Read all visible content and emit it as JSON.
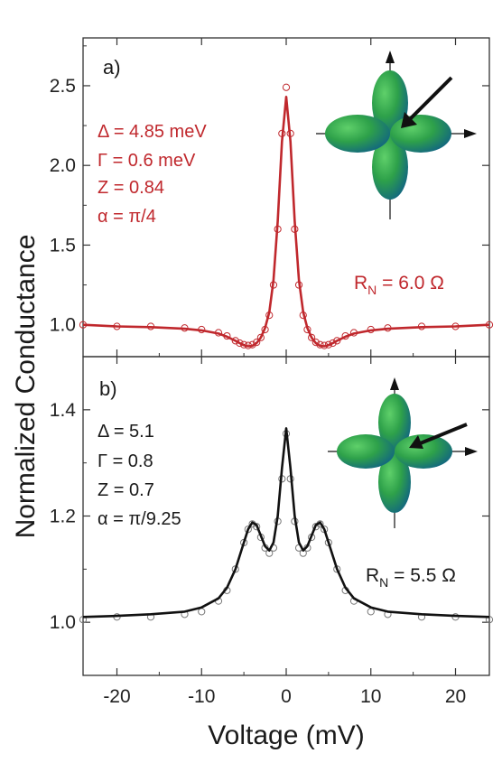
{
  "colors": {
    "top_series": "#c0282d",
    "bottom_fit": "#111111",
    "bottom_data": "#777777",
    "lobe_light": "#38b24a",
    "lobe_dark": "#0c5a8c"
  },
  "chart_data": [
    {
      "type": "line",
      "panel_label": "a)",
      "xlabel": "Voltage (mV)",
      "ylabel": "Normalized Conductance",
      "xlim": [
        -24,
        24
      ],
      "ylim": [
        0.8,
        2.8
      ],
      "yticks": [
        "1.0",
        "1.5",
        "2.0",
        "2.5"
      ],
      "params": [
        "Δ = 4.85 meV",
        "Γ = 0.6 meV",
        "Z = 0.84",
        "α = π/4"
      ],
      "rn": {
        "prefix": "R",
        "sub": "N",
        "value": " = 6.0 Ω"
      },
      "inset": {
        "type": "d-wave order parameter lobes",
        "arrow_angle_deg": 45
      },
      "series": [
        {
          "kind": "data",
          "marker": "open circle",
          "x": [
            -24,
            -20,
            -16,
            -12,
            -10,
            -8,
            -7,
            -6,
            -5.5,
            -5,
            -4.5,
            -4,
            -3.5,
            -3,
            -2.5,
            -2,
            -1.5,
            -1,
            -0.5,
            0,
            0.5,
            1,
            1.5,
            2,
            2.5,
            3,
            3.5,
            4,
            4.5,
            5,
            5.5,
            6,
            7,
            8,
            10,
            12,
            16,
            20,
            24
          ],
          "y": [
            1.0,
            0.99,
            0.99,
            0.98,
            0.97,
            0.95,
            0.93,
            0.9,
            0.885,
            0.875,
            0.87,
            0.875,
            0.89,
            0.92,
            0.97,
            1.06,
            1.25,
            1.6,
            2.2,
            2.49,
            2.2,
            1.6,
            1.25,
            1.06,
            0.97,
            0.92,
            0.89,
            0.875,
            0.87,
            0.875,
            0.885,
            0.9,
            0.93,
            0.95,
            0.97,
            0.98,
            0.99,
            0.99,
            1.0
          ]
        },
        {
          "kind": "fit",
          "x": [
            -24,
            -20,
            -16,
            -12,
            -10,
            -8,
            -7,
            -6,
            -5.5,
            -5,
            -4.5,
            -4,
            -3.5,
            -3,
            -2.5,
            -2,
            -1.5,
            -1,
            -0.5,
            0,
            0.5,
            1,
            1.5,
            2,
            2.5,
            3,
            3.5,
            4,
            4.5,
            5,
            5.5,
            6,
            7,
            8,
            10,
            12,
            16,
            20,
            24
          ],
          "y": [
            1.0,
            0.99,
            0.985,
            0.975,
            0.965,
            0.945,
            0.925,
            0.9,
            0.885,
            0.872,
            0.865,
            0.868,
            0.885,
            0.92,
            0.98,
            1.08,
            1.28,
            1.65,
            2.15,
            2.43,
            2.15,
            1.65,
            1.28,
            1.08,
            0.98,
            0.92,
            0.885,
            0.868,
            0.865,
            0.872,
            0.885,
            0.9,
            0.925,
            0.945,
            0.965,
            0.975,
            0.985,
            0.99,
            1.0
          ]
        }
      ]
    },
    {
      "type": "line",
      "panel_label": "b)",
      "xlabel": "Voltage (mV)",
      "ylabel": "Normalized Conductance",
      "xlim": [
        -24,
        24
      ],
      "ylim": [
        0.9,
        1.5
      ],
      "xticks": [
        "-20",
        "-10",
        "0",
        "10",
        "20"
      ],
      "yticks": [
        "1.0",
        "1.2",
        "1.4"
      ],
      "params": [
        "Δ = 5.1",
        "Γ = 0.8",
        "Z = 0.7",
        "α = π/9.25"
      ],
      "rn": {
        "prefix": "R",
        "sub": "N",
        "value": " = 5.5 Ω"
      },
      "inset": {
        "type": "d-wave order parameter lobes",
        "arrow_angle_deg": 20
      },
      "series": [
        {
          "kind": "data",
          "marker": "open circle",
          "x": [
            -24,
            -20,
            -16,
            -12,
            -10,
            -8,
            -7,
            -6,
            -5,
            -4.5,
            -4,
            -3.5,
            -3,
            -2.5,
            -2,
            -1.5,
            -1,
            -0.5,
            0,
            0.5,
            1,
            1.5,
            2,
            2.5,
            3,
            3.5,
            4,
            4.5,
            5,
            6,
            7,
            8,
            10,
            12,
            16,
            20,
            24
          ],
          "y": [
            1.005,
            1.01,
            1.01,
            1.015,
            1.02,
            1.04,
            1.06,
            1.1,
            1.15,
            1.175,
            1.185,
            1.18,
            1.16,
            1.14,
            1.13,
            1.14,
            1.19,
            1.27,
            1.355,
            1.27,
            1.19,
            1.14,
            1.13,
            1.14,
            1.16,
            1.18,
            1.185,
            1.175,
            1.15,
            1.1,
            1.06,
            1.04,
            1.02,
            1.015,
            1.01,
            1.01,
            1.005
          ]
        },
        {
          "kind": "fit",
          "x": [
            -24,
            -20,
            -16,
            -12,
            -10,
            -8,
            -7,
            -6,
            -5,
            -4.5,
            -4,
            -3.5,
            -3,
            -2.5,
            -2,
            -1.5,
            -1,
            -0.5,
            0,
            0.5,
            1,
            1.5,
            2,
            2.5,
            3,
            3.5,
            4,
            4.5,
            5,
            6,
            7,
            8,
            10,
            12,
            16,
            20,
            24
          ],
          "y": [
            1.01,
            1.012,
            1.015,
            1.02,
            1.028,
            1.045,
            1.065,
            1.1,
            1.15,
            1.175,
            1.188,
            1.183,
            1.163,
            1.143,
            1.135,
            1.15,
            1.2,
            1.29,
            1.365,
            1.29,
            1.2,
            1.15,
            1.135,
            1.143,
            1.163,
            1.183,
            1.188,
            1.175,
            1.15,
            1.1,
            1.065,
            1.045,
            1.028,
            1.02,
            1.015,
            1.012,
            1.01
          ]
        }
      ]
    }
  ]
}
